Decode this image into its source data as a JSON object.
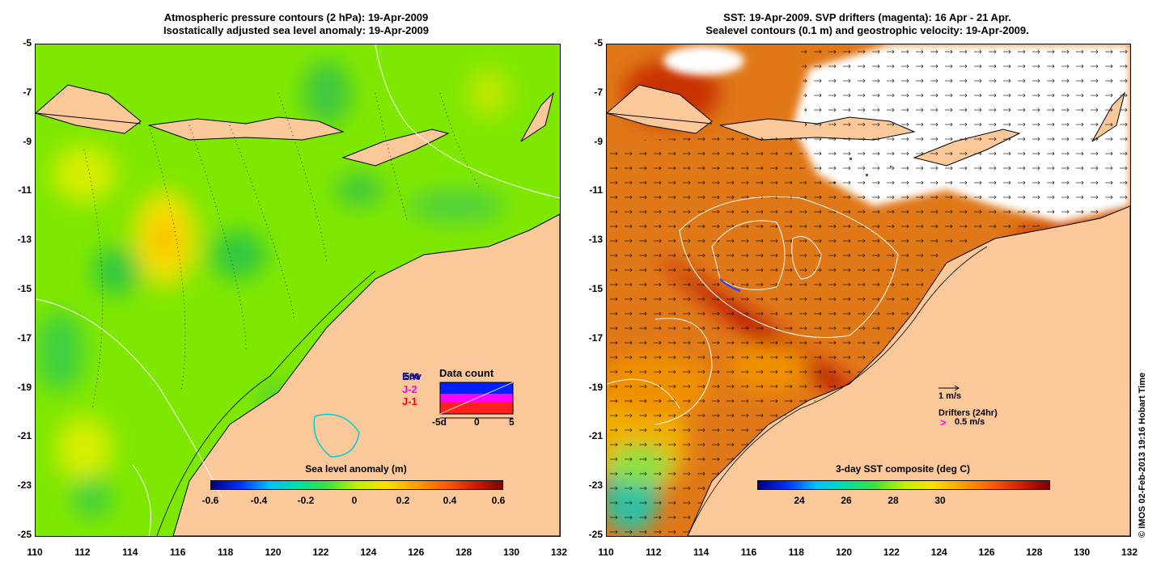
{
  "left_panel": {
    "title_line1": "Atmospheric pressure contours (2 hPa): 19-Apr-2009",
    "title_line2": "Isostatically adjusted sea level anomaly: 19-Apr-2009",
    "colorbar_title": "Sea level anomaly (m)",
    "colorbar_labels": [
      "-0.6",
      "-0.4",
      "-0.2",
      "0",
      "0.2",
      "0.4",
      "0.6"
    ],
    "legend": {
      "title": "Data count",
      "series": [
        "Env",
        "J-2",
        "J-1"
      ],
      "overlap_label": "580",
      "x_labels": [
        "-5d",
        "0",
        "5"
      ]
    }
  },
  "right_panel": {
    "title_line1": "SST: 19-Apr-2009. SVP drifters (magenta): 16 Apr - 21 Apr.",
    "title_line2": "Sealevel contours (0.1 m) and geostrophic velocity: 19-Apr-2009.",
    "colorbar_title": "3-day SST composite (deg C)",
    "colorbar_labels": [
      "24",
      "26",
      "28",
      "30"
    ],
    "velocity_scale_label": "1 m/s",
    "drifters_label": "Drifters (24hr)",
    "drifters_scale_label": "0.5 m/s"
  },
  "y_ticks": [
    "-5",
    "-7",
    "-9",
    "-11",
    "-13",
    "-15",
    "-17",
    "-19",
    "-21",
    "-23",
    "-25"
  ],
  "x_ticks": [
    "110",
    "112",
    "114",
    "116",
    "118",
    "120",
    "122",
    "124",
    "126",
    "128",
    "130",
    "132"
  ],
  "credit": "© IMOS 02-Feb-2013 19:16 Hobart Time",
  "colors": {
    "land": "#fbc999",
    "sla_background": "#7fe800",
    "sst_background": "#e07818",
    "sst_warm": "#b81400",
    "cloud": "#ffffff"
  }
}
